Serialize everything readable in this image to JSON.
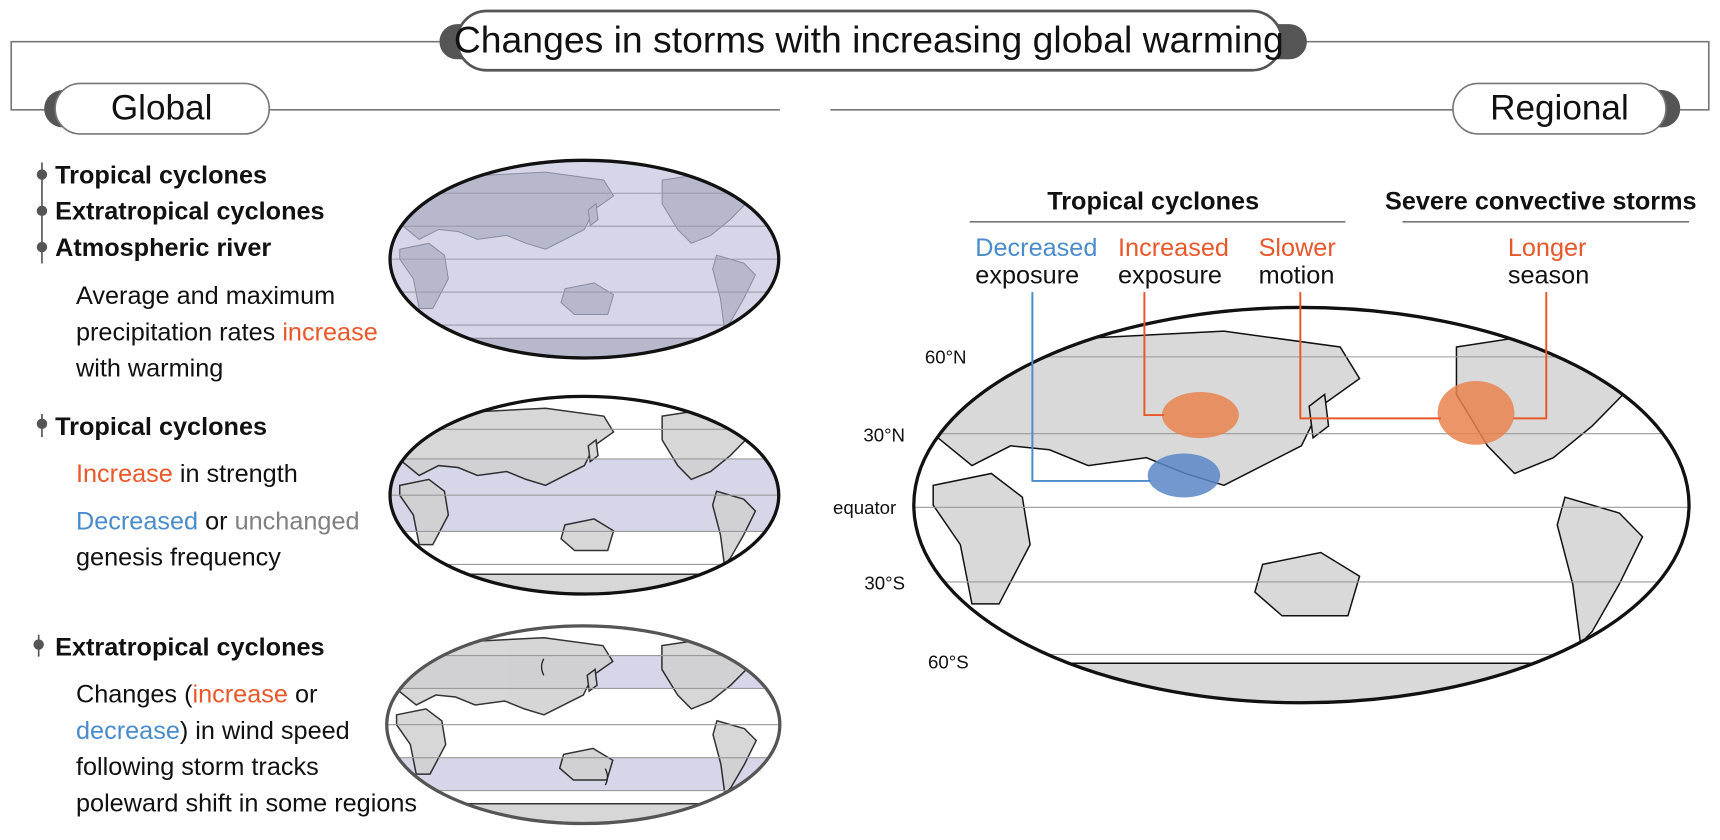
{
  "title": "Changes in storms with increasing global warming",
  "global": {
    "label": "Global",
    "panels": [
      {
        "headings": [
          "Tropical cyclones",
          "Extratropical cyclones",
          "Atmospheric river"
        ],
        "lines": [
          [
            "Average and maximum"
          ],
          [
            "precipitation rates ",
            "increase"
          ],
          [
            "with warming"
          ]
        ]
      },
      {
        "headings": [
          "Tropical cyclones"
        ],
        "lines": [
          [
            "Increase",
            " in strength"
          ],
          [
            "Decreased",
            " or ",
            "unchanged"
          ],
          [
            "genesis frequency"
          ]
        ]
      },
      {
        "headings": [
          "Extratropical cyclones"
        ],
        "lines": [
          [
            "Changes (",
            "increase",
            " or"
          ],
          [
            "decrease",
            ") in wind speed"
          ],
          [
            "following storm tracks"
          ],
          [
            "poleward shift in some regions"
          ]
        ]
      }
    ]
  },
  "regional": {
    "label": "Regional",
    "groups": [
      {
        "title": "Tropical cyclones",
        "items": [
          [
            "Decreased",
            "exposure"
          ],
          [
            "Increased",
            "exposure"
          ],
          [
            "Slower",
            "motion"
          ]
        ]
      },
      {
        "title": "Severe convective storms",
        "items": [
          [
            "Longer",
            "season"
          ]
        ]
      }
    ],
    "latitudes": [
      "60°N",
      "30°N",
      "equator",
      "30°S",
      "60°S"
    ]
  }
}
